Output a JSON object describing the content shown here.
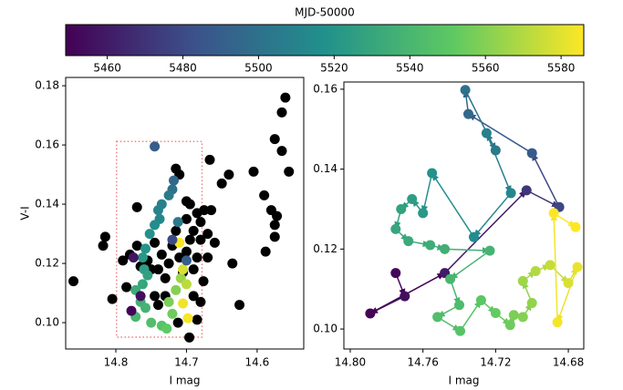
{
  "chart_data": [
    {
      "type": "colorbar",
      "label": "MJD-50000",
      "cmap": "viridis",
      "clim": [
        5449,
        5586
      ],
      "ticks": [
        5460,
        5480,
        5500,
        5520,
        5540,
        5560,
        5580
      ]
    },
    {
      "type": "scatter",
      "xlabel": "I mag",
      "ylabel": "V-I",
      "xlim": [
        14.871,
        14.534
      ],
      "ylim": [
        0.0911,
        0.1828
      ],
      "xticks": [
        14.8,
        14.7,
        14.6
      ],
      "yticks": [
        {
          "value": 0.1,
          "label": "0.10"
        },
        {
          "value": 0.12,
          "label": "0.12"
        },
        {
          "value": 0.14,
          "label": "0.14"
        },
        {
          "value": 0.16,
          "label": "0.16"
        },
        {
          "value": 0.18,
          "label": "0.18"
        }
      ],
      "box": {
        "x": [
          14.799,
          14.678
        ],
        "y": [
          0.0951,
          0.1612
        ],
        "color": "#f08080"
      },
      "series": [
        {
          "color": "#000000",
          "x": [
            14.86,
            14.815,
            14.818,
            14.805,
            14.79,
            14.78,
            14.785,
            14.77,
            14.765,
            14.755,
            14.745,
            14.74,
            14.735,
            14.73,
            14.725,
            14.72,
            14.715,
            14.71,
            14.705,
            14.7,
            14.695,
            14.69,
            14.685,
            14.68,
            14.69,
            14.7,
            14.695,
            14.69,
            14.685,
            14.68,
            14.675,
            14.665,
            14.67,
            14.66,
            14.67,
            14.676,
            14.68,
            14.685,
            14.696,
            14.71,
            14.715,
            14.7,
            14.667,
            14.65,
            14.64,
            14.635,
            14.625,
            14.605,
            14.575,
            14.565,
            14.555,
            14.56,
            14.565,
            14.59,
            14.58,
            14.572,
            14.575,
            14.575,
            14.588,
            14.77,
            14.75,
            14.74,
            14.745,
            14.712,
            14.73
          ],
          "y": [
            0.114,
            0.129,
            0.126,
            0.108,
            0.121,
            0.123,
            0.112,
            0.126,
            0.119,
            0.121,
            0.127,
            0.118,
            0.123,
            0.115,
            0.12,
            0.126,
            0.131,
            0.122,
            0.117,
            0.124,
            0.128,
            0.118,
            0.122,
            0.128,
            0.109,
            0.135,
            0.14,
            0.131,
            0.137,
            0.134,
            0.138,
            0.138,
            0.13,
            0.127,
            0.122,
            0.114,
            0.107,
            0.101,
            0.095,
            0.15,
            0.152,
            0.141,
            0.155,
            0.147,
            0.15,
            0.12,
            0.106,
            0.151,
            0.162,
            0.158,
            0.151,
            0.176,
            0.171,
            0.143,
            0.138,
            0.136,
            0.133,
            0.129,
            0.124,
            0.139,
            0.118,
            0.106,
            0.109,
            0.1,
            0.109
          ]
        },
        {
          "x": [
            14.745,
            14.718,
            14.72,
            14.725,
            14.735,
            14.74,
            14.738,
            14.745,
            14.752,
            14.758,
            14.762,
            14.76,
            14.755,
            14.762,
            14.772,
            14.765,
            14.758,
            14.772,
            14.75,
            14.735,
            14.728,
            14.72,
            14.725,
            14.715,
            14.708,
            14.7,
            14.705,
            14.71,
            14.698,
            14.705,
            14.778,
            14.765,
            14.775,
            14.72,
            14.7,
            14.712
          ],
          "y": [
            0.1595,
            0.148,
            0.145,
            0.143,
            0.14,
            0.138,
            0.135,
            0.133,
            0.13,
            0.125,
            0.122,
            0.118,
            0.116,
            0.113,
            0.111,
            0.107,
            0.105,
            0.102,
            0.1,
            0.099,
            0.098,
            0.103,
            0.107,
            0.111,
            0.115,
            0.113,
            0.118,
            0.127,
            0.1015,
            0.1065,
            0.104,
            0.109,
            0.122,
            0.128,
            0.121,
            0.134
          ],
          "c": [
            5490,
            5495,
            5500,
            5505,
            5508,
            5510,
            5512,
            5515,
            5518,
            5520,
            5522,
            5525,
            5527,
            5530,
            5533,
            5536,
            5538,
            5540,
            5545,
            5548,
            5552,
            5555,
            5558,
            5560,
            5565,
            5572,
            5578,
            5585,
            5585,
            5583,
            5450,
            5455,
            5458,
            5480,
            5490,
            5505
          ]
        }
      ]
    },
    {
      "type": "scatter",
      "xlabel": "I mag",
      "arrows": true,
      "xlim": [
        14.8035,
        14.6715
      ],
      "ylim": [
        0.095,
        0.1618
      ],
      "xticks": [
        {
          "value": 14.8,
          "label": "14.80"
        },
        {
          "value": 14.76,
          "label": "14.76"
        },
        {
          "value": 14.72,
          "label": "14.72"
        },
        {
          "value": 14.68,
          "label": "14.68"
        }
      ],
      "yticks": [
        {
          "value": 0.1,
          "label": "0.10"
        },
        {
          "value": 0.12,
          "label": "0.12"
        },
        {
          "value": 0.14,
          "label": "0.14"
        },
        {
          "value": 0.16,
          "label": "0.16"
        }
      ],
      "series": [
        {
          "x": [
            14.775,
            14.77,
            14.789,
            14.748,
            14.703,
            14.685,
            14.7,
            14.735,
            14.7367,
            14.72,
            14.725,
            14.7116,
            14.732,
            14.755,
            14.76,
            14.766,
            14.772,
            14.775,
            14.768,
            14.756,
            14.748,
            14.7232,
            14.745,
            14.74,
            14.752,
            14.7395,
            14.728,
            14.72,
            14.712,
            14.71,
            14.705,
            14.7,
            14.705,
            14.698,
            14.69,
            14.68,
            14.675,
            14.686,
            14.688,
            14.676
          ],
          "y": [
            0.114,
            0.1082,
            0.1039,
            0.114,
            0.1347,
            0.1305,
            0.144,
            0.1538,
            0.1598,
            0.1447,
            0.149,
            0.134,
            0.123,
            0.139,
            0.129,
            0.1325,
            0.13,
            0.125,
            0.122,
            0.121,
            0.12,
            0.1196,
            0.1125,
            0.106,
            0.103,
            0.0995,
            0.1072,
            0.104,
            0.101,
            0.1035,
            0.103,
            0.1065,
            0.112,
            0.1145,
            0.116,
            0.1115,
            0.1155,
            0.1017,
            0.129,
            0.1255
          ],
          "c": [
            5452,
            5455,
            5450,
            5460,
            5472,
            5478,
            5488,
            5495,
            5500,
            5505,
            5508,
            5512,
            5515,
            5518,
            5522,
            5525,
            5527,
            5530,
            5532,
            5534,
            5536,
            5538,
            5540,
            5543,
            5545,
            5548,
            5550,
            5553,
            5555,
            5558,
            5560,
            5563,
            5566,
            5570,
            5574,
            5578,
            5582,
            5584,
            5586,
            5586
          ]
        }
      ]
    }
  ]
}
